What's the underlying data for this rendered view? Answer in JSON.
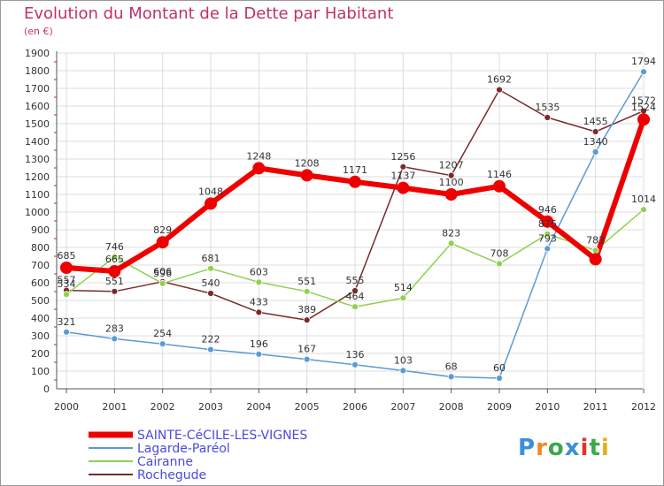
{
  "header": {
    "title": "Evolution du Montant de la Dette par Habitant",
    "subtitle": "(en €)"
  },
  "logo": {
    "text": "Proxiti",
    "colors": [
      "#3a8fd8",
      "#f08a24",
      "#3aa84a",
      "#3a8fd8",
      "#e0332d",
      "#3aa84a",
      "#e0b020"
    ]
  },
  "chart_data": {
    "type": "line",
    "x": [
      "2000",
      "2001",
      "2002",
      "2003",
      "2004",
      "2005",
      "2006",
      "2007",
      "2008",
      "2009",
      "2010",
      "2011",
      "2012"
    ],
    "ylim": [
      0,
      1900
    ],
    "yticks": [
      0,
      100,
      200,
      300,
      400,
      500,
      600,
      700,
      800,
      900,
      1000,
      1100,
      1200,
      1300,
      1400,
      1500,
      1600,
      1700,
      1800,
      1900
    ],
    "grid": true,
    "legend_position": "bottom-left",
    "series": [
      {
        "name": "SAINTE-CéCILE-LES-VIGNES",
        "color": "#ee0000",
        "width": 6,
        "marker": 7,
        "values": [
          685,
          665,
          829,
          1048,
          1248,
          1208,
          1171,
          1137,
          1100,
          1146,
          946,
          733,
          1524
        ],
        "labels": [
          "685",
          "665",
          "829",
          "1048",
          "1248",
          "1208",
          "1171",
          "1137",
          "1100",
          "1146",
          "946",
          "",
          "1524"
        ]
      },
      {
        "name": "Lagarde-Paréol",
        "color": "#5b9bd5",
        "width": 1.5,
        "marker": 3.5,
        "values": [
          321,
          283,
          254,
          222,
          196,
          167,
          136,
          103,
          68,
          60,
          793,
          1340,
          1794
        ],
        "labels": [
          "321",
          "283",
          "254",
          "222",
          "196",
          "167",
          "136",
          "103",
          "68",
          "60",
          "793",
          "1340",
          "1794"
        ]
      },
      {
        "name": "Cairanne",
        "color": "#8fd14f",
        "width": 1.5,
        "marker": 3.5,
        "values": [
          534,
          746,
          596,
          681,
          603,
          551,
          464,
          514,
          823,
          708,
          876,
          783,
          1014
        ],
        "labels": [
          "534",
          "746",
          "596",
          "681",
          "603",
          "551",
          "464",
          "514",
          "823",
          "708",
          "876",
          "783",
          "1014"
        ]
      },
      {
        "name": "Rochegude",
        "color": "#7a2a2a",
        "width": 1.5,
        "marker": 3.5,
        "values": [
          557,
          551,
          606,
          540,
          433,
          389,
          555,
          1256,
          1207,
          1692,
          1535,
          1455,
          1572
        ],
        "labels": [
          "557",
          "551",
          "606",
          "540",
          "433",
          "389",
          "555",
          "1256",
          "1207",
          "1692",
          "1535",
          "1455",
          "1572"
        ]
      }
    ]
  }
}
